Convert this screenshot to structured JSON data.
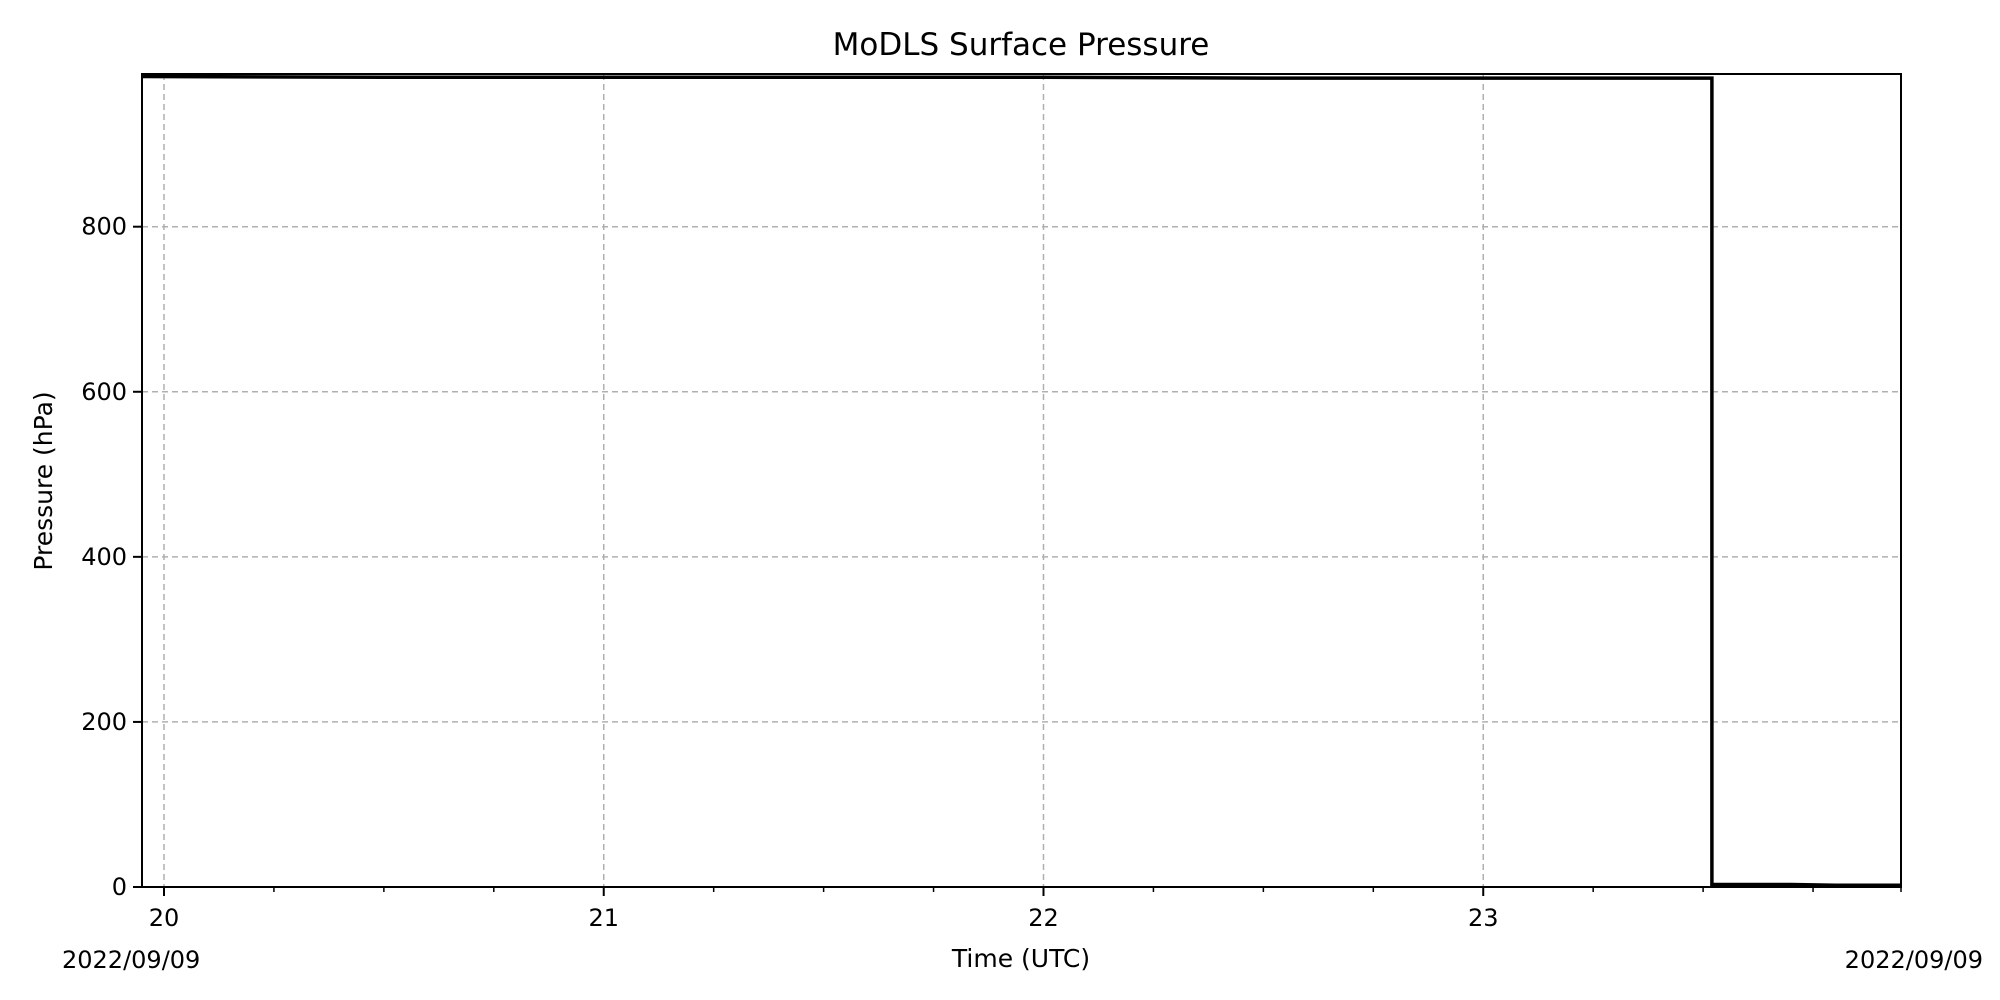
{
  "chart_data": {
    "type": "line",
    "title": "MoDLS Surface Pressure",
    "xlabel": "Time (UTC)",
    "ylabel": "Pressure (hPa)",
    "x_unit": "hour (UTC) on 2022/09/09",
    "xlim": [
      19.95,
      23.95
    ],
    "ylim": [
      0,
      985
    ],
    "x_ticks": [
      20,
      21,
      22,
      23
    ],
    "x_tick_labels": [
      "20",
      "21",
      "22",
      "23"
    ],
    "x_minor_ticks": [
      20.25,
      20.5,
      20.75,
      21.25,
      21.5,
      21.75,
      22.25,
      22.5,
      22.75,
      23.25,
      23.5,
      23.75,
      23.95
    ],
    "y_ticks": [
      0,
      200,
      400,
      600,
      800
    ],
    "y_tick_labels": [
      "0",
      "200",
      "400",
      "600",
      "800"
    ],
    "date_start_label": "2022/09/09",
    "date_end_label": "2022/09/09",
    "grid": true,
    "legend": "none",
    "line_color": "#000000",
    "grid_color": "#b0b0b0",
    "series": [
      {
        "x": [
          19.95,
          20.5,
          21.0,
          21.5,
          22.0,
          22.5,
          23.0,
          23.52,
          23.52,
          23.6,
          23.7,
          23.8,
          23.95
        ],
        "values": [
          982,
          981,
          981,
          981,
          981,
          980,
          980,
          980,
          3,
          3,
          3,
          2,
          2
        ]
      }
    ]
  }
}
